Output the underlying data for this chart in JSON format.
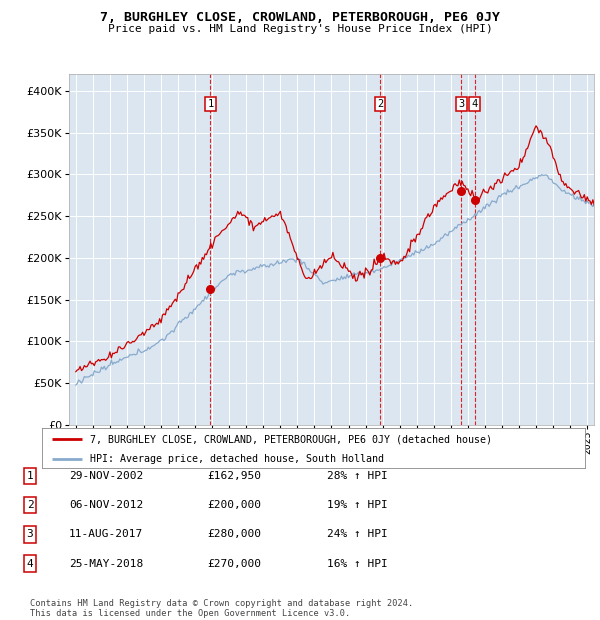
{
  "title": "7, BURGHLEY CLOSE, CROWLAND, PETERBOROUGH, PE6 0JY",
  "subtitle": "Price paid vs. HM Land Registry's House Price Index (HPI)",
  "background_color": "#dce6f1",
  "ylim": [
    0,
    420000
  ],
  "yticks": [
    0,
    50000,
    100000,
    150000,
    200000,
    250000,
    300000,
    350000,
    400000
  ],
  "legend1_label": "7, BURGHLEY CLOSE, CROWLAND, PETERBOROUGH, PE6 0JY (detached house)",
  "legend2_label": "HPI: Average price, detached house, South Holland",
  "line1_color": "#cc0000",
  "line2_color": "#88aacc",
  "transactions": [
    {
      "num": 1,
      "date": "29-NOV-2002",
      "price": 162950,
      "pct": "28% ↑ HPI",
      "year_x": 2002.9
    },
    {
      "num": 2,
      "date": "06-NOV-2012",
      "price": 200000,
      "pct": "19% ↑ HPI",
      "year_x": 2012.85
    },
    {
      "num": 3,
      "date": "11-AUG-2017",
      "price": 280000,
      "pct": "24% ↑ HPI",
      "year_x": 2017.62
    },
    {
      "num": 4,
      "date": "25-MAY-2018",
      "price": 270000,
      "pct": "16% ↑ HPI",
      "year_x": 2018.4
    }
  ],
  "footer": "Contains HM Land Registry data © Crown copyright and database right 2024.\nThis data is licensed under the Open Government Licence v3.0.",
  "xlim_start": 1994.6,
  "xlim_end": 2025.4
}
